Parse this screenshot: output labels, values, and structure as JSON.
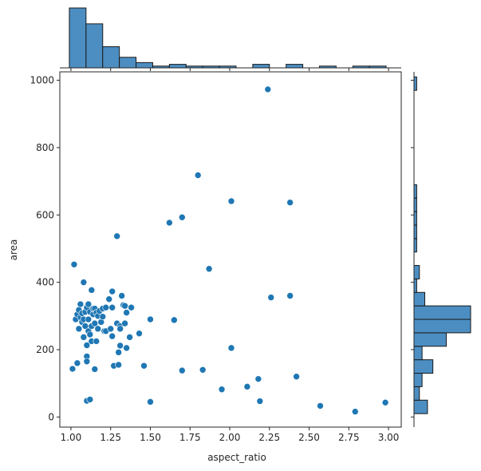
{
  "chart_data": {
    "type": "scatter",
    "subtype": "jointplot",
    "xlabel": "aspect_ratio",
    "ylabel": "area",
    "xlim": [
      0.93,
      3.08
    ],
    "ylim": [
      -30,
      1025
    ],
    "x_ticks": [
      1.0,
      1.25,
      1.5,
      1.75,
      2.0,
      2.25,
      2.5,
      2.75,
      3.0
    ],
    "x_tick_labels": [
      "1.00",
      "1.25",
      "1.50",
      "1.75",
      "2.00",
      "2.25",
      "2.50",
      "2.75",
      "3.00"
    ],
    "y_ticks": [
      0,
      200,
      400,
      600,
      800,
      1000
    ],
    "y_tick_labels": [
      "0",
      "200",
      "400",
      "600",
      "800",
      "1000"
    ],
    "colors": {
      "point": "#1f77b4",
      "point_edge": "#ffffff",
      "hist_fill": "#4c8ec2",
      "hist_edge": "#1a1a1a",
      "axis": "#262626"
    },
    "points": [
      [
        1.01,
        143
      ],
      [
        1.02,
        453
      ],
      [
        1.03,
        290
      ],
      [
        1.04,
        160
      ],
      [
        1.04,
        305
      ],
      [
        1.05,
        318
      ],
      [
        1.05,
        262
      ],
      [
        1.06,
        335
      ],
      [
        1.06,
        296
      ],
      [
        1.07,
        282
      ],
      [
        1.07,
        308
      ],
      [
        1.08,
        400
      ],
      [
        1.08,
        290
      ],
      [
        1.08,
        237
      ],
      [
        1.09,
        270
      ],
      [
        1.09,
        312
      ],
      [
        1.1,
        213
      ],
      [
        1.1,
        325
      ],
      [
        1.1,
        180
      ],
      [
        1.1,
        165
      ],
      [
        1.1,
        48
      ],
      [
        1.11,
        290
      ],
      [
        1.11,
        335
      ],
      [
        1.11,
        255
      ],
      [
        1.12,
        52
      ],
      [
        1.12,
        312
      ],
      [
        1.12,
        245
      ],
      [
        1.13,
        225
      ],
      [
        1.13,
        377
      ],
      [
        1.13,
        270
      ],
      [
        1.14,
        305
      ],
      [
        1.14,
        322
      ],
      [
        1.15,
        142
      ],
      [
        1.15,
        278
      ],
      [
        1.15,
        322
      ],
      [
        1.16,
        310
      ],
      [
        1.16,
        225
      ],
      [
        1.17,
        262
      ],
      [
        1.17,
        300
      ],
      [
        1.18,
        315
      ],
      [
        1.19,
        282
      ],
      [
        1.2,
        298
      ],
      [
        1.2,
        322
      ],
      [
        1.21,
        255
      ],
      [
        1.22,
        325
      ],
      [
        1.22,
        255
      ],
      [
        1.24,
        350
      ],
      [
        1.25,
        262
      ],
      [
        1.26,
        240
      ],
      [
        1.26,
        325
      ],
      [
        1.26,
        373
      ],
      [
        1.27,
        152
      ],
      [
        1.29,
        537
      ],
      [
        1.29,
        278
      ],
      [
        1.3,
        155
      ],
      [
        1.3,
        192
      ],
      [
        1.31,
        212
      ],
      [
        1.31,
        270
      ],
      [
        1.31,
        262
      ],
      [
        1.32,
        360
      ],
      [
        1.33,
        332
      ],
      [
        1.34,
        278
      ],
      [
        1.34,
        330
      ],
      [
        1.35,
        205
      ],
      [
        1.35,
        310
      ],
      [
        1.37,
        237
      ],
      [
        1.38,
        325
      ],
      [
        1.43,
        248
      ],
      [
        1.46,
        152
      ],
      [
        1.5,
        45
      ],
      [
        1.5,
        290
      ],
      [
        1.62,
        577
      ],
      [
        1.65,
        288
      ],
      [
        1.7,
        593
      ],
      [
        1.7,
        138
      ],
      [
        1.8,
        718
      ],
      [
        1.83,
        140
      ],
      [
        1.87,
        440
      ],
      [
        1.95,
        82
      ],
      [
        2.01,
        641
      ],
      [
        2.01,
        205
      ],
      [
        2.11,
        90
      ],
      [
        2.18,
        113
      ],
      [
        2.19,
        47
      ],
      [
        2.24,
        973
      ],
      [
        2.26,
        355
      ],
      [
        2.38,
        637
      ],
      [
        2.38,
        360
      ],
      [
        2.42,
        120
      ],
      [
        2.57,
        33
      ],
      [
        2.79,
        16
      ],
      [
        2.98,
        43
      ]
    ],
    "x_hist": {
      "bin_edges": [
        0.99,
        1.095,
        1.2,
        1.305,
        1.41,
        1.515,
        1.62,
        1.725,
        1.83,
        1.935,
        2.04,
        2.145,
        2.25,
        2.355,
        2.46,
        2.565,
        2.67,
        2.775,
        2.88,
        2.985
      ],
      "counts": [
        34,
        25,
        12,
        6,
        3,
        1,
        2,
        1,
        1,
        1,
        0,
        2,
        0,
        2,
        0,
        1,
        0,
        1,
        1
      ]
    },
    "y_hist": {
      "bin_edges": [
        10,
        50,
        90,
        130,
        170,
        210,
        250,
        290,
        330,
        370,
        410,
        450,
        490,
        530,
        570,
        610,
        650,
        690,
        730,
        770,
        810,
        850,
        890,
        930,
        970,
        1010
      ],
      "counts": [
        5,
        2,
        3,
        7,
        3,
        12,
        21,
        21,
        4,
        1,
        2,
        0,
        1,
        1,
        1,
        1,
        1,
        0,
        0,
        0,
        0,
        0,
        0,
        0,
        1
      ]
    }
  }
}
